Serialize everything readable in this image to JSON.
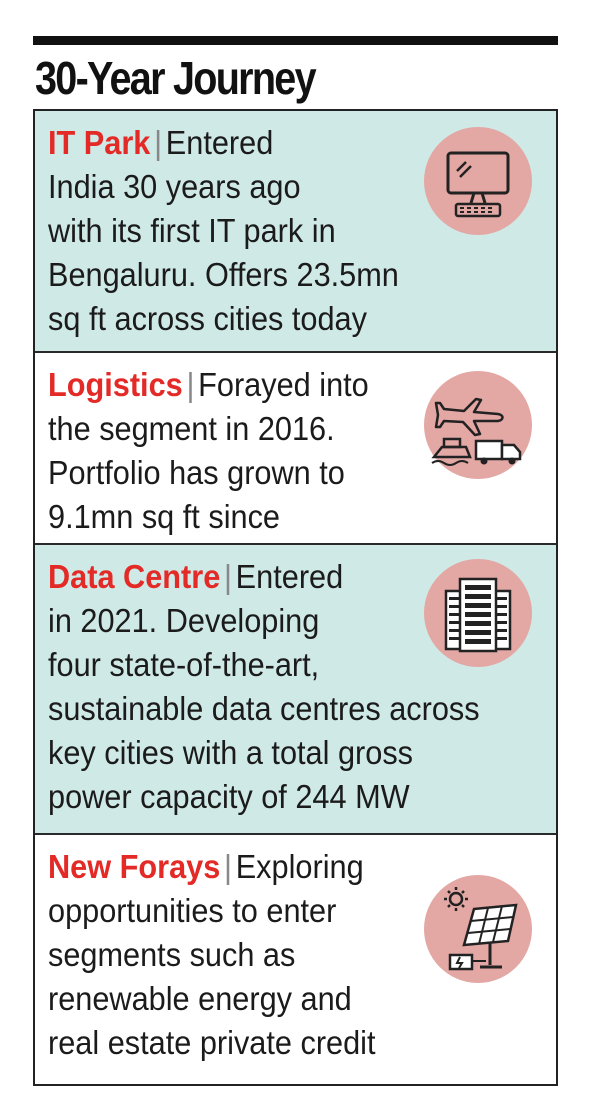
{
  "title": "30-Year Journey",
  "separator": "|",
  "sections": [
    {
      "label": "IT Park",
      "line1": "Entered",
      "lines": [
        "India 30 years ago",
        "with its first IT park in",
        "Bengaluru. Offers 23.5mn",
        "sq ft across cities today"
      ],
      "icon": "computer-icon"
    },
    {
      "label": "Logistics",
      "line1": "Forayed into",
      "lines": [
        "the segment in 2016.",
        "Portfolio has grown to",
        "9.1mn sq ft since"
      ],
      "icon": "transport-icon"
    },
    {
      "label": "Data Centre",
      "line1": "Entered",
      "lines": [
        "in 2021. Developing",
        "four state-of-the-art,",
        "sustainable data centres across",
        "key cities with a total gross",
        "power capacity of 244 MW"
      ],
      "icon": "server-icon"
    },
    {
      "label": "New Forays",
      "line1": "Exploring",
      "lines": [
        "opportunities to enter",
        "segments such as",
        "renewable energy and",
        "real estate private credit"
      ],
      "icon": "solar-panel-icon"
    }
  ],
  "colors": {
    "label": "#e32a27",
    "tint": "#cfe9e6",
    "circle": "#e3a7a4"
  }
}
